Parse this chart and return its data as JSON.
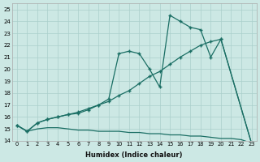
{
  "xlabel": "Humidex (Indice chaleur)",
  "bg_color": "#cce8e4",
  "line_color": "#1a6e64",
  "grid_color": "#aacfcb",
  "xlim": [
    -0.5,
    23.5
  ],
  "ylim": [
    14,
    25.5
  ],
  "xticks": [
    0,
    1,
    2,
    3,
    4,
    5,
    6,
    7,
    8,
    9,
    10,
    11,
    12,
    13,
    14,
    15,
    16,
    17,
    18,
    19,
    20,
    21,
    22,
    23
  ],
  "yticks": [
    14,
    15,
    16,
    17,
    18,
    19,
    20,
    21,
    22,
    23,
    24,
    25
  ],
  "line_upper": {
    "x": [
      0,
      1,
      2,
      3,
      4,
      5,
      6,
      7,
      8,
      9,
      10,
      11,
      12,
      13,
      14,
      15,
      16,
      17,
      18,
      19,
      20,
      23
    ],
    "y": [
      15.3,
      14.8,
      15.5,
      15.8,
      16.0,
      16.2,
      16.3,
      16.6,
      17.0,
      17.5,
      21.3,
      21.5,
      21.3,
      20.0,
      18.5,
      24.5,
      24.0,
      23.5,
      23.3,
      21.0,
      22.5,
      13.8
    ]
  },
  "line_middle": {
    "x": [
      0,
      1,
      2,
      3,
      4,
      5,
      6,
      7,
      8,
      9,
      10,
      11,
      12,
      13,
      14,
      15,
      16,
      17,
      18,
      19,
      20,
      23
    ],
    "y": [
      15.3,
      14.8,
      15.5,
      15.8,
      16.0,
      16.2,
      16.4,
      16.7,
      17.0,
      17.3,
      17.8,
      18.2,
      18.8,
      19.4,
      19.8,
      20.4,
      21.0,
      21.5,
      22.0,
      22.3,
      22.5,
      13.8
    ]
  },
  "line_lower": {
    "x": [
      0,
      1,
      2,
      3,
      4,
      5,
      6,
      7,
      8,
      9,
      10,
      11,
      12,
      13,
      14,
      15,
      16,
      17,
      18,
      19,
      20,
      21,
      22,
      23
    ],
    "y": [
      15.3,
      14.8,
      15.0,
      15.1,
      15.1,
      15.0,
      14.9,
      14.9,
      14.8,
      14.8,
      14.8,
      14.7,
      14.7,
      14.6,
      14.6,
      14.5,
      14.5,
      14.4,
      14.4,
      14.3,
      14.2,
      14.2,
      14.1,
      13.8
    ]
  }
}
